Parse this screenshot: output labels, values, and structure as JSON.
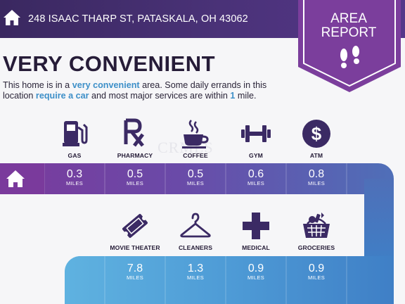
{
  "header": {
    "address": "248 ISAAC THARP ST, PATASKALA, OH 43062",
    "badge_title_line1": "AREA",
    "badge_title_line2": "REPORT"
  },
  "summary": {
    "rating": "VERY CONVENIENT",
    "desc_part1": "This home is in a ",
    "desc_hl1": "very convenient",
    "desc_part2": " area. Some daily errands in this location ",
    "desc_hl2": "require a car",
    "desc_part3": " and most major services are within ",
    "desc_hl3": "1",
    "desc_part4": " mile."
  },
  "watermark": "CRMLS",
  "services_row1": [
    {
      "label": "GAS",
      "icon": "gas-pump-icon",
      "distance": "0.3",
      "unit": "MILES"
    },
    {
      "label": "PHARMACY",
      "icon": "rx-icon",
      "distance": "0.5",
      "unit": "MILES"
    },
    {
      "label": "COFFEE",
      "icon": "coffee-cup-icon",
      "distance": "0.5",
      "unit": "MILES"
    },
    {
      "label": "GYM",
      "icon": "dumbbell-icon",
      "distance": "0.6",
      "unit": "MILES"
    },
    {
      "label": "ATM",
      "icon": "dollar-coin-icon",
      "distance": "0.8",
      "unit": "MILES"
    }
  ],
  "services_row2": [
    {
      "label": "MOVIE THEATER",
      "icon": "movie-ticket-icon",
      "distance": "7.8",
      "unit": "MILES"
    },
    {
      "label": "CLEANERS",
      "icon": "hanger-icon",
      "distance": "1.3",
      "unit": "MILES"
    },
    {
      "label": "MEDICAL",
      "icon": "medical-cross-icon",
      "distance": "0.9",
      "unit": "MILES"
    },
    {
      "label": "GROCERIES",
      "icon": "grocery-basket-icon",
      "distance": "0.9",
      "unit": "MILES"
    }
  ],
  "colors": {
    "header_purple": "#3a2860",
    "badge_purple": "#7b3e9c",
    "accent_blue": "#3d8fc8",
    "icon_dark": "#3b2a64"
  }
}
